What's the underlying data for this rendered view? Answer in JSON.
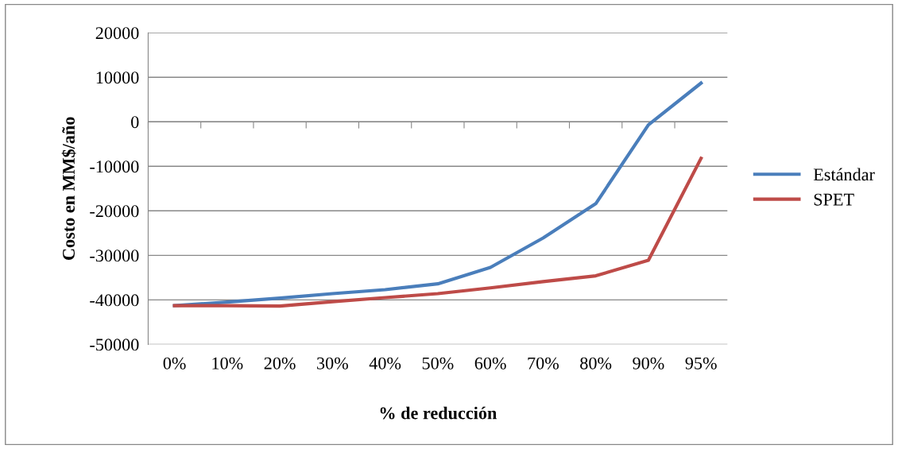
{
  "chart_data": {
    "type": "line",
    "xlabel": "% de reducción",
    "ylabel": "Costo en MM$/año",
    "categories": [
      "0%",
      "10%",
      "20%",
      "30%",
      "40%",
      "50%",
      "60%",
      "70%",
      "80%",
      "90%",
      "95%"
    ],
    "series": [
      {
        "name": "Estándar",
        "color": "#4a7ebb",
        "values": [
          -41300,
          -40500,
          -39600,
          -38600,
          -37700,
          -36400,
          -32700,
          -26100,
          -18400,
          -700,
          8700
        ]
      },
      {
        "name": "SPET",
        "color": "#be4b48",
        "values": [
          -41300,
          -41300,
          -41400,
          -40400,
          -39500,
          -38600,
          -37300,
          -35900,
          -34600,
          -31100,
          -8200
        ]
      }
    ],
    "ylim": [
      -50000,
      20000
    ],
    "yticks": [
      -50000,
      -40000,
      -30000,
      -20000,
      -10000,
      0,
      10000,
      20000
    ],
    "grid": "y",
    "legend": "right",
    "marker": "none",
    "line_style": "solid"
  }
}
